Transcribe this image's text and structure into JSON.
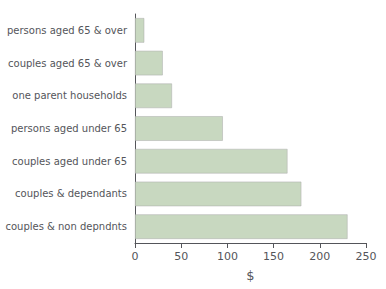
{
  "chart_data": {
    "type": "bar",
    "orientation": "horizontal",
    "categories": [
      "couples & non depndnts",
      "couples & dependants",
      "couples aged under 65",
      "persons aged under 65",
      "one parent households",
      "couples aged 65 & over",
      "persons aged 65 & over"
    ],
    "values": [
      230,
      180,
      165,
      95,
      40,
      30,
      10
    ],
    "color": "#c8d8c0",
    "xlabel": "$",
    "xlim": [
      0,
      250
    ],
    "xticks": [
      0,
      50,
      100,
      150,
      200,
      250
    ],
    "grid": false
  }
}
